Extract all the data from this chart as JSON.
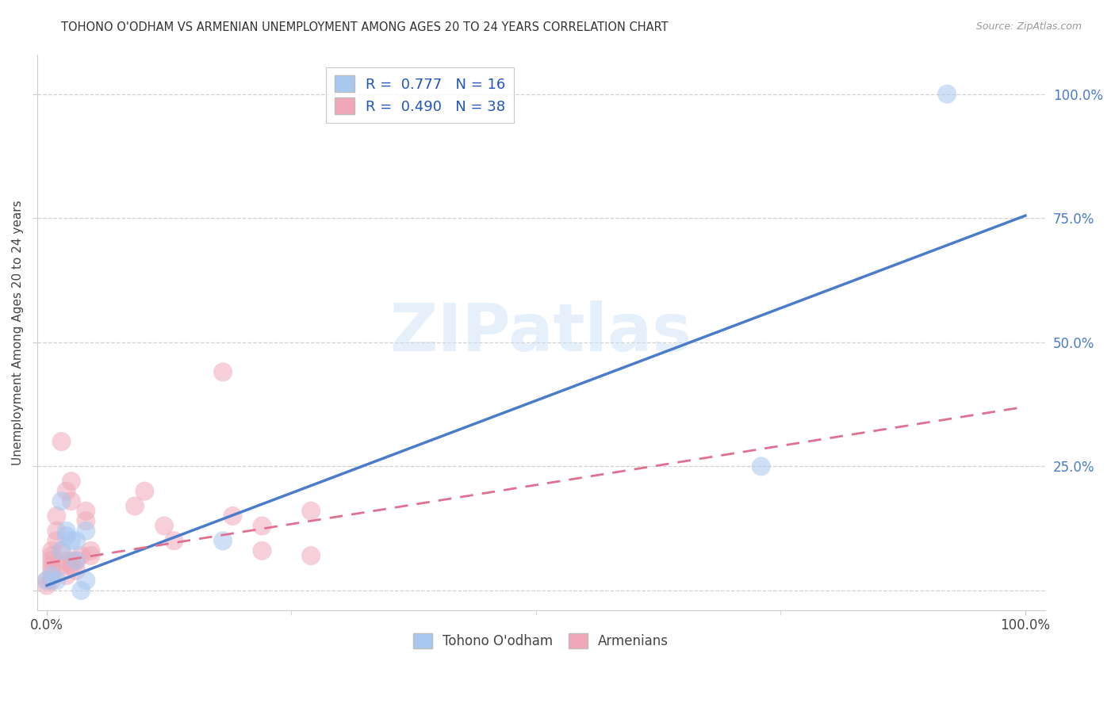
{
  "title": "TOHONO O'ODHAM VS ARMENIAN UNEMPLOYMENT AMONG AGES 20 TO 24 YEARS CORRELATION CHART",
  "source": "Source: ZipAtlas.com",
  "ylabel": "Unemployment Among Ages 20 to 24 years",
  "xlim": [
    -0.01,
    1.02
  ],
  "ylim": [
    -0.04,
    1.08
  ],
  "background_color": "#ffffff",
  "grid_color": "#cccccc",
  "tohono_color": "#a8c8f0",
  "armenian_color": "#f0a8b8",
  "tohono_line_color": "#4a7cc9",
  "armenian_line_color": "#e07090",
  "tohono_scatter": [
    [
      0.0,
      0.02
    ],
    [
      0.005,
      0.03
    ],
    [
      0.01,
      0.02
    ],
    [
      0.015,
      0.18
    ],
    [
      0.015,
      0.08
    ],
    [
      0.02,
      0.11
    ],
    [
      0.02,
      0.12
    ],
    [
      0.025,
      0.1
    ],
    [
      0.03,
      0.1
    ],
    [
      0.03,
      0.06
    ],
    [
      0.035,
      0.0
    ],
    [
      0.04,
      0.12
    ],
    [
      0.04,
      0.02
    ],
    [
      0.18,
      0.1
    ],
    [
      0.73,
      0.25
    ],
    [
      0.92,
      1.0
    ]
  ],
  "armenian_scatter": [
    [
      0.0,
      0.02
    ],
    [
      0.0,
      0.01
    ],
    [
      0.005,
      0.04
    ],
    [
      0.005,
      0.05
    ],
    [
      0.005,
      0.06
    ],
    [
      0.005,
      0.08
    ],
    [
      0.005,
      0.07
    ],
    [
      0.01,
      0.1
    ],
    [
      0.01,
      0.12
    ],
    [
      0.01,
      0.15
    ],
    [
      0.015,
      0.05
    ],
    [
      0.015,
      0.08
    ],
    [
      0.015,
      0.3
    ],
    [
      0.02,
      0.2
    ],
    [
      0.02,
      0.06
    ],
    [
      0.02,
      0.03
    ],
    [
      0.025,
      0.06
    ],
    [
      0.025,
      0.05
    ],
    [
      0.025,
      0.22
    ],
    [
      0.025,
      0.18
    ],
    [
      0.03,
      0.04
    ],
    [
      0.03,
      0.06
    ],
    [
      0.035,
      0.07
    ],
    [
      0.04,
      0.14
    ],
    [
      0.04,
      0.16
    ],
    [
      0.045,
      0.07
    ],
    [
      0.045,
      0.08
    ],
    [
      0.09,
      0.17
    ],
    [
      0.1,
      0.2
    ],
    [
      0.12,
      0.13
    ],
    [
      0.13,
      0.1
    ],
    [
      0.18,
      0.44
    ],
    [
      0.19,
      0.15
    ],
    [
      0.22,
      0.13
    ],
    [
      0.22,
      0.08
    ],
    [
      0.27,
      0.16
    ],
    [
      0.27,
      0.07
    ],
    [
      0.005,
      0.02
    ]
  ],
  "tohono_line_x": [
    0.0,
    1.0
  ],
  "tohono_line_y": [
    0.01,
    0.755
  ],
  "armenian_line_x": [
    0.0,
    1.0
  ],
  "armenian_line_y": [
    0.055,
    0.37
  ],
  "ytick_positions": [
    0.0,
    0.25,
    0.5,
    0.75,
    1.0
  ],
  "xtick_positions": [
    0.0,
    1.0
  ],
  "legend_top_labels": [
    "R =  0.777   N = 16",
    "R =  0.490   N = 38"
  ],
  "legend_top_colors": [
    "#a8c8f0",
    "#f0a8b8"
  ],
  "legend_bottom_labels": [
    "Tohono O'odham",
    "Armenians"
  ],
  "legend_bottom_colors": [
    "#a8c8f0",
    "#f0a8b8"
  ],
  "watermark_text": "ZIPatlas",
  "watermark_color": "#c8dff5"
}
